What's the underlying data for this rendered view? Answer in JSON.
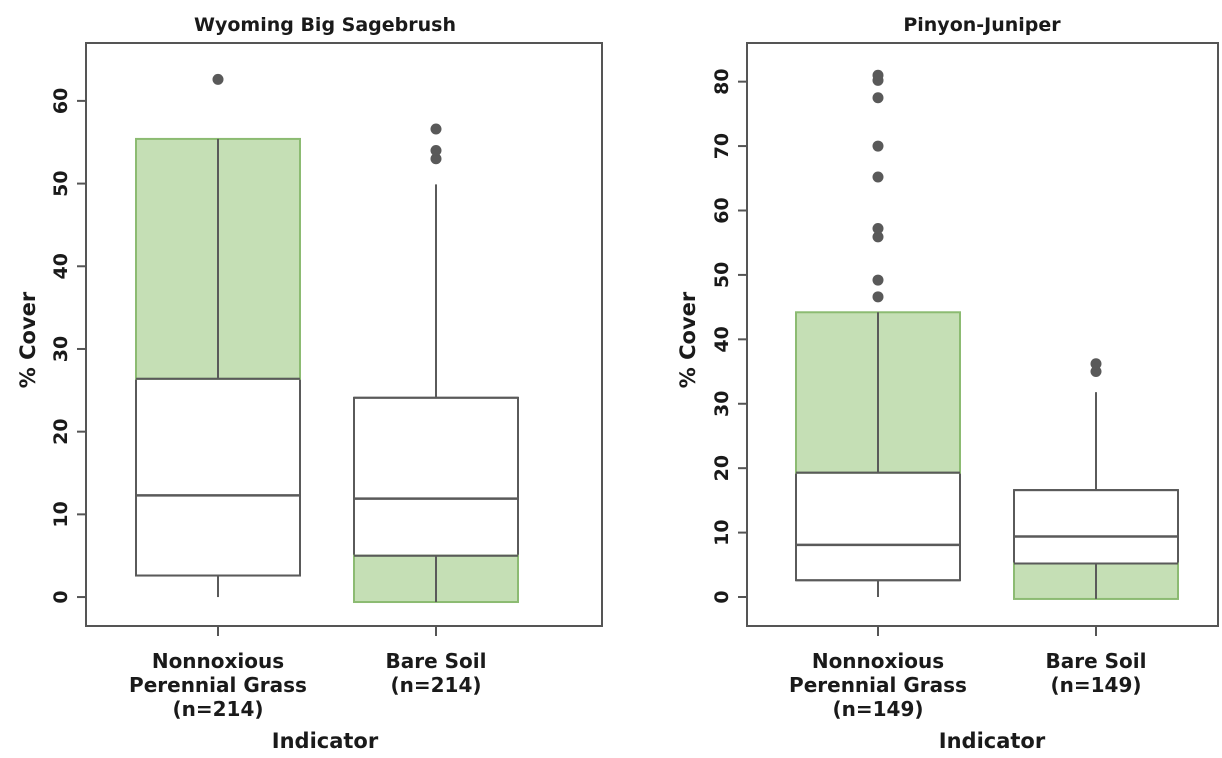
{
  "colors": {
    "frame": "#555555",
    "box_stroke": "#5a5a5a",
    "highlight_fill": "#c5dfb5",
    "highlight_stroke": "#8cbb72",
    "outlier": "#595959"
  },
  "chart_data": [
    {
      "type": "boxplot",
      "title": "Wyoming Big Sagebrush",
      "xlabel": "Indicator",
      "ylabel": "% Cover",
      "ylim": [
        -3.5,
        67
      ],
      "yticks": [
        0,
        10,
        20,
        30,
        40,
        50,
        60
      ],
      "categories": [
        {
          "label_lines": [
            "Nonnoxious",
            "Perennial Grass",
            "(n=214)"
          ],
          "min": 0,
          "q1": 2.6,
          "median": 12.3,
          "q3": 26.4,
          "max": 55.4,
          "outliers": [
            62.6
          ],
          "highlight_range": [
            26.4,
            55.4
          ]
        },
        {
          "label_lines": [
            "Bare Soil",
            "(n=214)"
          ],
          "min": -0.6,
          "q1": 5.0,
          "median": 11.9,
          "q3": 24.1,
          "max": 49.9,
          "outliers": [
            53.0,
            54.0,
            56.6
          ],
          "highlight_range": [
            -0.6,
            5.0
          ]
        }
      ]
    },
    {
      "type": "boxplot",
      "title": "Pinyon-Juniper",
      "xlabel": "Indicator",
      "ylabel": "% Cover",
      "ylim": [
        -4.5,
        86
      ],
      "yticks": [
        0,
        10,
        20,
        30,
        40,
        50,
        60,
        70,
        80
      ],
      "categories": [
        {
          "label_lines": [
            "Nonnoxious",
            "Perennial Grass",
            "(n=149)"
          ],
          "min": 0,
          "q1": 2.6,
          "median": 8.1,
          "q3": 19.3,
          "max": 44.2,
          "outliers": [
            46.6,
            49.2,
            55.9,
            57.2,
            65.2,
            70.0,
            77.5,
            80.2,
            81.0
          ],
          "highlight_range": [
            19.3,
            44.2
          ]
        },
        {
          "label_lines": [
            "Bare Soil",
            "(n=149)"
          ],
          "min": -0.3,
          "q1": 5.2,
          "median": 9.4,
          "q3": 16.6,
          "max": 31.8,
          "outliers": [
            35.0,
            36.2
          ],
          "highlight_range": [
            -0.3,
            5.2
          ]
        }
      ]
    }
  ]
}
